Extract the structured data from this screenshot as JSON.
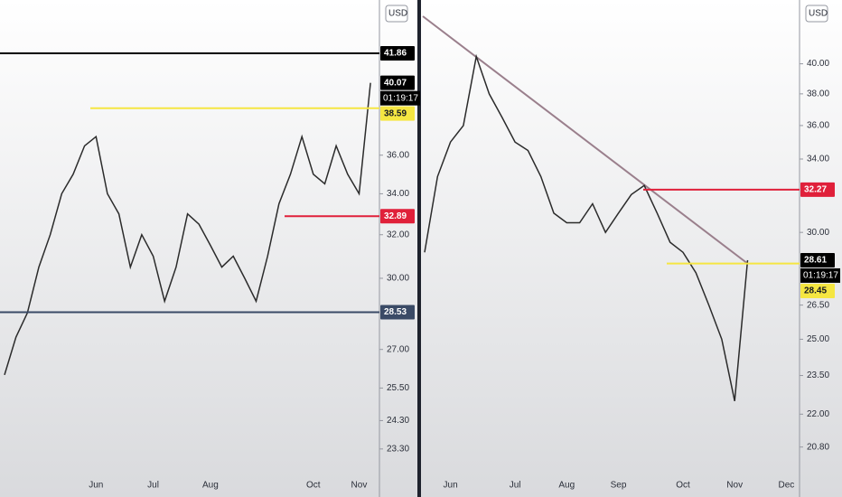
{
  "chart_data": [
    {
      "type": "line",
      "unit": "USD",
      "color": "#2b2b2b",
      "log": true,
      "categories": [
        null,
        null,
        null,
        null,
        null,
        null,
        null,
        null,
        "Jun",
        null,
        null,
        null,
        null,
        "Jul",
        null,
        null,
        null,
        null,
        "Aug",
        null,
        null,
        null,
        null,
        null,
        null,
        null,
        null,
        "Oct",
        null,
        null,
        null,
        "Nov",
        null
      ],
      "values": [
        26,
        27.5,
        28.5,
        30.5,
        32,
        34,
        35,
        36.5,
        37,
        34,
        33,
        30.5,
        32,
        31,
        29,
        30.5,
        33,
        32.5,
        31.5,
        30.5,
        31,
        30,
        29,
        31,
        33.5,
        35,
        37,
        35,
        34.5,
        36.5,
        35,
        34,
        40.07
      ],
      "ylim": [
        21.7,
        45.3
      ],
      "yticks": [
        {
          "value": 23.3,
          "label": "23.30"
        },
        {
          "value": 24.3,
          "label": "24.30"
        },
        {
          "value": 25.5,
          "label": "25.50"
        },
        {
          "value": 27,
          "label": "27.00"
        },
        {
          "value": 30,
          "label": "30.00"
        },
        {
          "value": 32,
          "label": "32.00"
        },
        {
          "value": 34,
          "label": "34.00"
        },
        {
          "value": 36,
          "label": "36.00"
        }
      ],
      "levels": [
        {
          "value": 41.86,
          "color": "#000000"
        },
        {
          "value": 38.59,
          "color": "#f5e642"
        },
        {
          "value": 32.89,
          "color": "#e0203a"
        },
        {
          "value": 28.53,
          "color": "#3a4a66"
        }
      ],
      "countdown": "01:19:17"
    },
    {
      "type": "line",
      "unit": "USD",
      "color": "#2b2b2b",
      "log": true,
      "categories": [
        null,
        null,
        "Jun",
        null,
        null,
        null,
        null,
        "Jul",
        null,
        null,
        null,
        "Aug",
        null,
        null,
        null,
        "Sep",
        null,
        null,
        null,
        null,
        "Oct",
        null,
        null,
        null,
        "Nov",
        null,
        null,
        null,
        "Dec"
      ],
      "values": [
        29,
        33,
        35,
        36,
        40.5,
        38,
        36.5,
        35,
        34.5,
        33,
        31,
        30.5,
        30.5,
        31.5,
        30,
        31,
        32,
        32.5,
        31,
        29.5,
        29,
        28,
        26.5,
        25,
        22.5,
        28.61,
        null,
        null,
        null
      ],
      "ylim": [
        19.1,
        44.6
      ],
      "yticks": [
        {
          "value": 20.8,
          "label": "20.80"
        },
        {
          "value": 22,
          "label": "22.00"
        },
        {
          "value": 23.5,
          "label": "23.50"
        },
        {
          "value": 25,
          "label": "25.00"
        },
        {
          "value": 26.5,
          "label": "26.50"
        },
        {
          "value": 30,
          "label": "30.00"
        },
        {
          "value": 34,
          "label": "34.00"
        },
        {
          "value": 36,
          "label": "36.00"
        },
        {
          "value": 38,
          "label": "38.00"
        },
        {
          "value": 40,
          "label": "40.00"
        }
      ],
      "levels": [
        {
          "value": 32.27,
          "color": "#e0203a"
        },
        {
          "value": 28.45,
          "color": "#f5e642"
        }
      ],
      "countdown": "01:19:17"
    }
  ]
}
